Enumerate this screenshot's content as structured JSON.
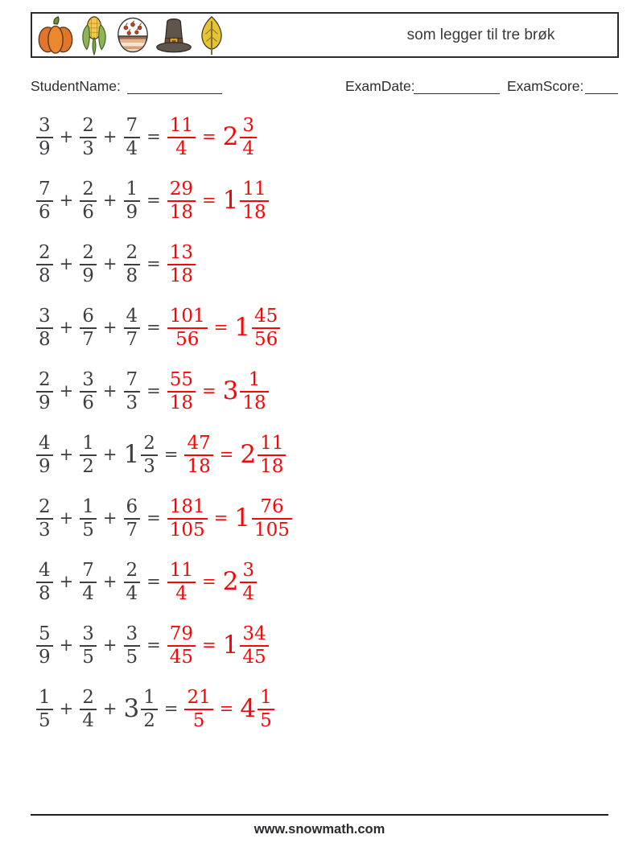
{
  "header": {
    "title": "som legger til tre brøk",
    "icons": [
      "pumpkin-icon",
      "corn-icon",
      "food-bowl-icon",
      "pilgrim-hat-icon",
      "leaf-icon"
    ]
  },
  "fields": {
    "student_name_label": "StudentName:",
    "exam_date_label": "ExamDate:",
    "exam_score_label": "ExamScore:"
  },
  "symbols": {
    "plus": "+",
    "equals": "="
  },
  "colors": {
    "answer_red": "#fa0505",
    "text_dark": "#3d3d42"
  },
  "problems": [
    {
      "terms": [
        {
          "n": "3",
          "d": "9"
        },
        {
          "n": "2",
          "d": "3"
        },
        {
          "n": "7",
          "d": "4"
        }
      ],
      "result": {
        "n": "11",
        "d": "4"
      },
      "mixed": {
        "whole": "2",
        "n": "3",
        "d": "4"
      }
    },
    {
      "terms": [
        {
          "n": "7",
          "d": "6"
        },
        {
          "n": "2",
          "d": "6"
        },
        {
          "n": "1",
          "d": "9"
        }
      ],
      "result": {
        "n": "29",
        "d": "18"
      },
      "mixed": {
        "whole": "1",
        "n": "11",
        "d": "18"
      }
    },
    {
      "terms": [
        {
          "n": "2",
          "d": "8"
        },
        {
          "n": "2",
          "d": "9"
        },
        {
          "n": "2",
          "d": "8"
        }
      ],
      "result": {
        "n": "13",
        "d": "18"
      },
      "mixed": null
    },
    {
      "terms": [
        {
          "n": "3",
          "d": "8"
        },
        {
          "n": "6",
          "d": "7"
        },
        {
          "n": "4",
          "d": "7"
        }
      ],
      "result": {
        "n": "101",
        "d": "56"
      },
      "mixed": {
        "whole": "1",
        "n": "45",
        "d": "56"
      }
    },
    {
      "terms": [
        {
          "n": "2",
          "d": "9"
        },
        {
          "n": "3",
          "d": "6"
        },
        {
          "n": "7",
          "d": "3"
        }
      ],
      "result": {
        "n": "55",
        "d": "18"
      },
      "mixed": {
        "whole": "3",
        "n": "1",
        "d": "18"
      }
    },
    {
      "terms": [
        {
          "n": "4",
          "d": "9"
        },
        {
          "n": "1",
          "d": "2"
        },
        {
          "whole": "1",
          "n": "2",
          "d": "3"
        }
      ],
      "result": {
        "n": "47",
        "d": "18"
      },
      "mixed": {
        "whole": "2",
        "n": "11",
        "d": "18"
      }
    },
    {
      "terms": [
        {
          "n": "2",
          "d": "3"
        },
        {
          "n": "1",
          "d": "5"
        },
        {
          "n": "6",
          "d": "7"
        }
      ],
      "result": {
        "n": "181",
        "d": "105"
      },
      "mixed": {
        "whole": "1",
        "n": "76",
        "d": "105"
      }
    },
    {
      "terms": [
        {
          "n": "4",
          "d": "8"
        },
        {
          "n": "7",
          "d": "4"
        },
        {
          "n": "2",
          "d": "4"
        }
      ],
      "result": {
        "n": "11",
        "d": "4"
      },
      "mixed": {
        "whole": "2",
        "n": "3",
        "d": "4"
      }
    },
    {
      "terms": [
        {
          "n": "5",
          "d": "9"
        },
        {
          "n": "3",
          "d": "5"
        },
        {
          "n": "3",
          "d": "5"
        }
      ],
      "result": {
        "n": "79",
        "d": "45"
      },
      "mixed": {
        "whole": "1",
        "n": "34",
        "d": "45"
      }
    },
    {
      "terms": [
        {
          "n": "1",
          "d": "5"
        },
        {
          "n": "2",
          "d": "4"
        },
        {
          "whole": "3",
          "n": "1",
          "d": "2"
        }
      ],
      "result": {
        "n": "21",
        "d": "5"
      },
      "mixed": {
        "whole": "4",
        "n": "1",
        "d": "5"
      }
    }
  ],
  "footer": {
    "url": "www.snowmath.com"
  }
}
